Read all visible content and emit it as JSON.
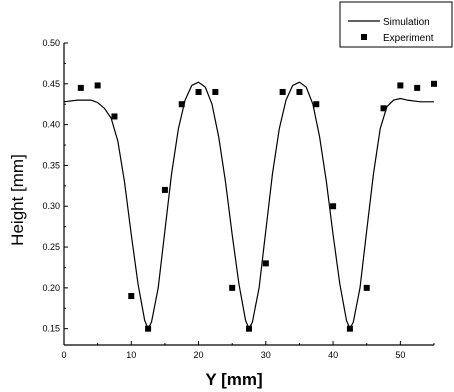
{
  "chart_data": {
    "type": "line",
    "title": "",
    "xlabel": "Y [mm]",
    "ylabel": "Height [mm]",
    "xlim": [
      0,
      55
    ],
    "ylim": [
      0.13,
      0.5
    ],
    "x_ticks": [
      "0",
      "10",
      "20",
      "30",
      "40",
      "50"
    ],
    "y_ticks": [
      "0.15",
      "0.20",
      "0.25",
      "0.30",
      "0.35",
      "0.40",
      "0.45",
      "0.50"
    ],
    "grid": false,
    "legend_position": "top-right",
    "series": [
      {
        "name": "Simulation",
        "style": "line",
        "color": "#000000",
        "x": [
          0,
          2,
          4,
          5,
          6,
          7,
          8,
          9,
          10,
          11,
          12,
          12.5,
          13,
          14,
          15,
          16,
          17,
          18,
          19,
          20,
          21,
          22,
          23,
          24,
          25,
          26,
          27,
          27.5,
          28,
          29,
          30,
          31,
          32,
          33,
          34,
          35,
          36,
          37,
          38,
          39,
          40,
          41,
          42,
          42.5,
          43,
          44,
          45,
          46,
          47,
          48,
          49,
          50,
          51,
          53,
          55
        ],
        "y": [
          0.428,
          0.43,
          0.43,
          0.427,
          0.42,
          0.408,
          0.38,
          0.33,
          0.265,
          0.205,
          0.16,
          0.15,
          0.158,
          0.2,
          0.27,
          0.34,
          0.395,
          0.43,
          0.448,
          0.452,
          0.446,
          0.425,
          0.385,
          0.33,
          0.265,
          0.205,
          0.16,
          0.15,
          0.158,
          0.2,
          0.27,
          0.34,
          0.395,
          0.43,
          0.448,
          0.452,
          0.446,
          0.425,
          0.385,
          0.33,
          0.265,
          0.205,
          0.16,
          0.15,
          0.158,
          0.2,
          0.27,
          0.34,
          0.395,
          0.422,
          0.43,
          0.432,
          0.43,
          0.428,
          0.428
        ]
      },
      {
        "name": "Experiment",
        "style": "square-marker",
        "color": "#000000",
        "x": [
          2.5,
          5,
          7.5,
          10,
          12.5,
          15,
          17.5,
          20,
          22.5,
          25,
          27.5,
          30,
          32.5,
          35,
          37.5,
          40,
          42.5,
          45,
          47.5,
          50,
          52.5,
          55
        ],
        "y": [
          0.445,
          0.448,
          0.41,
          0.19,
          0.15,
          0.32,
          0.425,
          0.44,
          0.44,
          0.2,
          0.15,
          0.23,
          0.44,
          0.44,
          0.425,
          0.3,
          0.15,
          0.2,
          0.42,
          0.448,
          0.445,
          0.45
        ]
      }
    ]
  }
}
